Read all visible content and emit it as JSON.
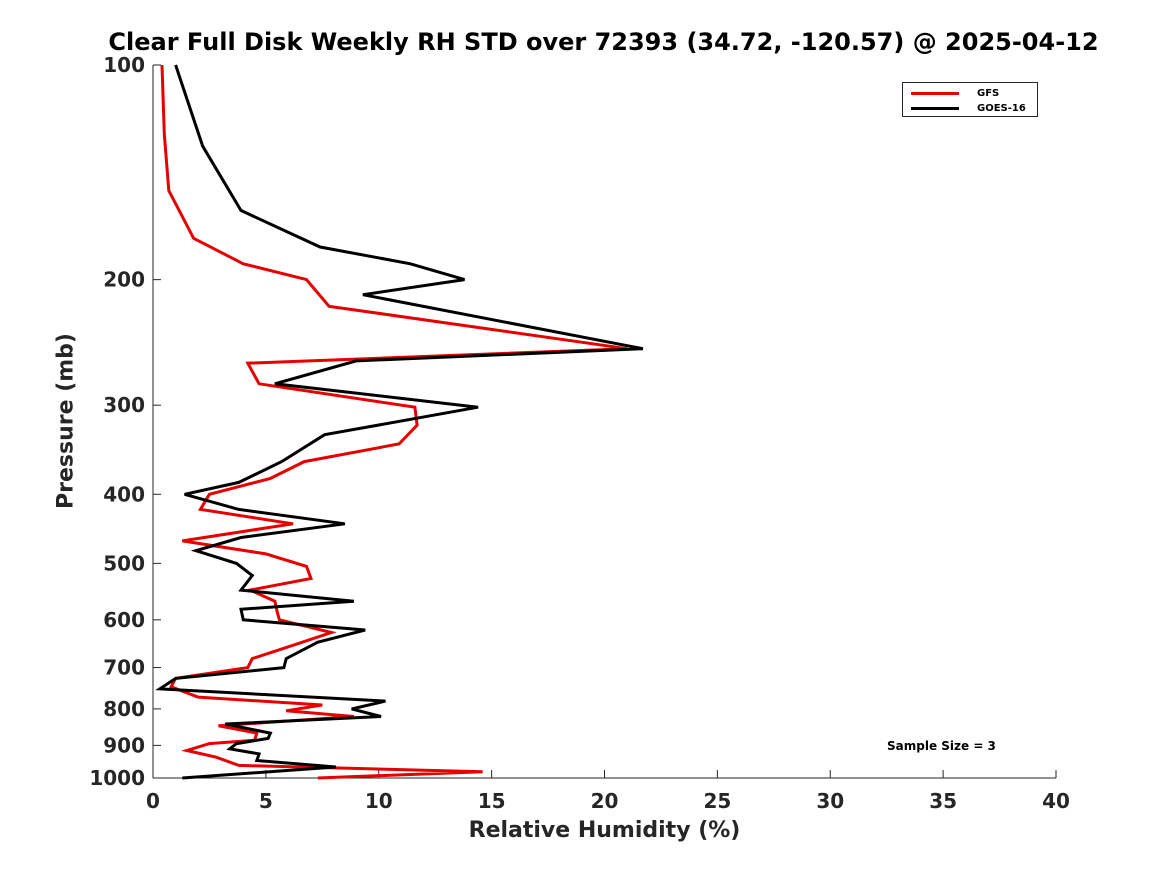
{
  "chart_data": {
    "type": "line",
    "title": "Clear Full Disk Weekly RH STD over 72393 (34.72, -120.57) @ 2025-04-12",
    "xlabel": "Relative Humidity (%)",
    "ylabel": "Pressure (mb)",
    "xlim": [
      0,
      40
    ],
    "ylim": [
      100,
      1000
    ],
    "y_scale": "log",
    "y_inverted": true,
    "x_ticks": [
      "0",
      "5",
      "10",
      "15",
      "20",
      "25",
      "30",
      "35",
      "40"
    ],
    "y_ticks": [
      "100",
      "200",
      "300",
      "400",
      "500",
      "600",
      "700",
      "800",
      "900",
      "1000"
    ],
    "legend_position": "top-right",
    "grid": false,
    "annotation": "Sample Size = 3",
    "series": [
      {
        "name": "GFS",
        "color": "#e60000",
        "points": [
          [
            0.4,
            100
          ],
          [
            0.5,
            125
          ],
          [
            0.7,
            150
          ],
          [
            1.8,
            175
          ],
          [
            4.0,
            190
          ],
          [
            6.8,
            200
          ],
          [
            7.8,
            218
          ],
          [
            21.0,
            250
          ],
          [
            4.2,
            262
          ],
          [
            4.7,
            280
          ],
          [
            11.6,
            302
          ],
          [
            11.7,
            320
          ],
          [
            10.9,
            340
          ],
          [
            6.7,
            360
          ],
          [
            5.2,
            380
          ],
          [
            2.5,
            400
          ],
          [
            2.1,
            420
          ],
          [
            6.2,
            440
          ],
          [
            1.3,
            465
          ],
          [
            5.0,
            485
          ],
          [
            6.8,
            505
          ],
          [
            7.0,
            525
          ],
          [
            4.3,
            545
          ],
          [
            5.4,
            565
          ],
          [
            5.5,
            585
          ],
          [
            5.6,
            600
          ],
          [
            7.9,
            625
          ],
          [
            6.3,
            650
          ],
          [
            4.4,
            680
          ],
          [
            4.2,
            700
          ],
          [
            1.0,
            725
          ],
          [
            0.8,
            745
          ],
          [
            2.0,
            770
          ],
          [
            7.5,
            790
          ],
          [
            5.9,
            805
          ],
          [
            8.9,
            820
          ],
          [
            2.9,
            845
          ],
          [
            4.6,
            865
          ],
          [
            4.5,
            885
          ],
          [
            2.5,
            895
          ],
          [
            1.5,
            915
          ],
          [
            2.8,
            935
          ],
          [
            3.8,
            960
          ],
          [
            14.6,
            980
          ],
          [
            7.3,
            1000
          ]
        ]
      },
      {
        "name": "GOES-16",
        "color": "#000000",
        "points": [
          [
            1.0,
            100
          ],
          [
            2.2,
            130
          ],
          [
            3.9,
            160
          ],
          [
            7.4,
            180
          ],
          [
            11.4,
            190
          ],
          [
            13.8,
            200
          ],
          [
            9.3,
            210
          ],
          [
            21.7,
            250
          ],
          [
            9.0,
            260
          ],
          [
            5.4,
            280
          ],
          [
            14.4,
            302
          ],
          [
            7.6,
            330
          ],
          [
            5.7,
            360
          ],
          [
            3.8,
            385
          ],
          [
            1.4,
            400
          ],
          [
            3.8,
            420
          ],
          [
            8.5,
            440
          ],
          [
            3.9,
            460
          ],
          [
            1.9,
            480
          ],
          [
            3.7,
            500
          ],
          [
            4.4,
            520
          ],
          [
            3.9,
            545
          ],
          [
            8.9,
            565
          ],
          [
            3.9,
            580
          ],
          [
            4.0,
            600
          ],
          [
            9.4,
            620
          ],
          [
            7.3,
            645
          ],
          [
            5.9,
            680
          ],
          [
            5.8,
            700
          ],
          [
            1.0,
            725
          ],
          [
            0.3,
            750
          ],
          [
            10.3,
            780
          ],
          [
            8.8,
            800
          ],
          [
            10.1,
            820
          ],
          [
            3.2,
            840
          ],
          [
            5.2,
            865
          ],
          [
            5.1,
            880
          ],
          [
            3.7,
            895
          ],
          [
            3.4,
            910
          ],
          [
            4.7,
            925
          ],
          [
            4.6,
            945
          ],
          [
            8.1,
            965
          ],
          [
            1.3,
            1000
          ]
        ]
      }
    ]
  }
}
